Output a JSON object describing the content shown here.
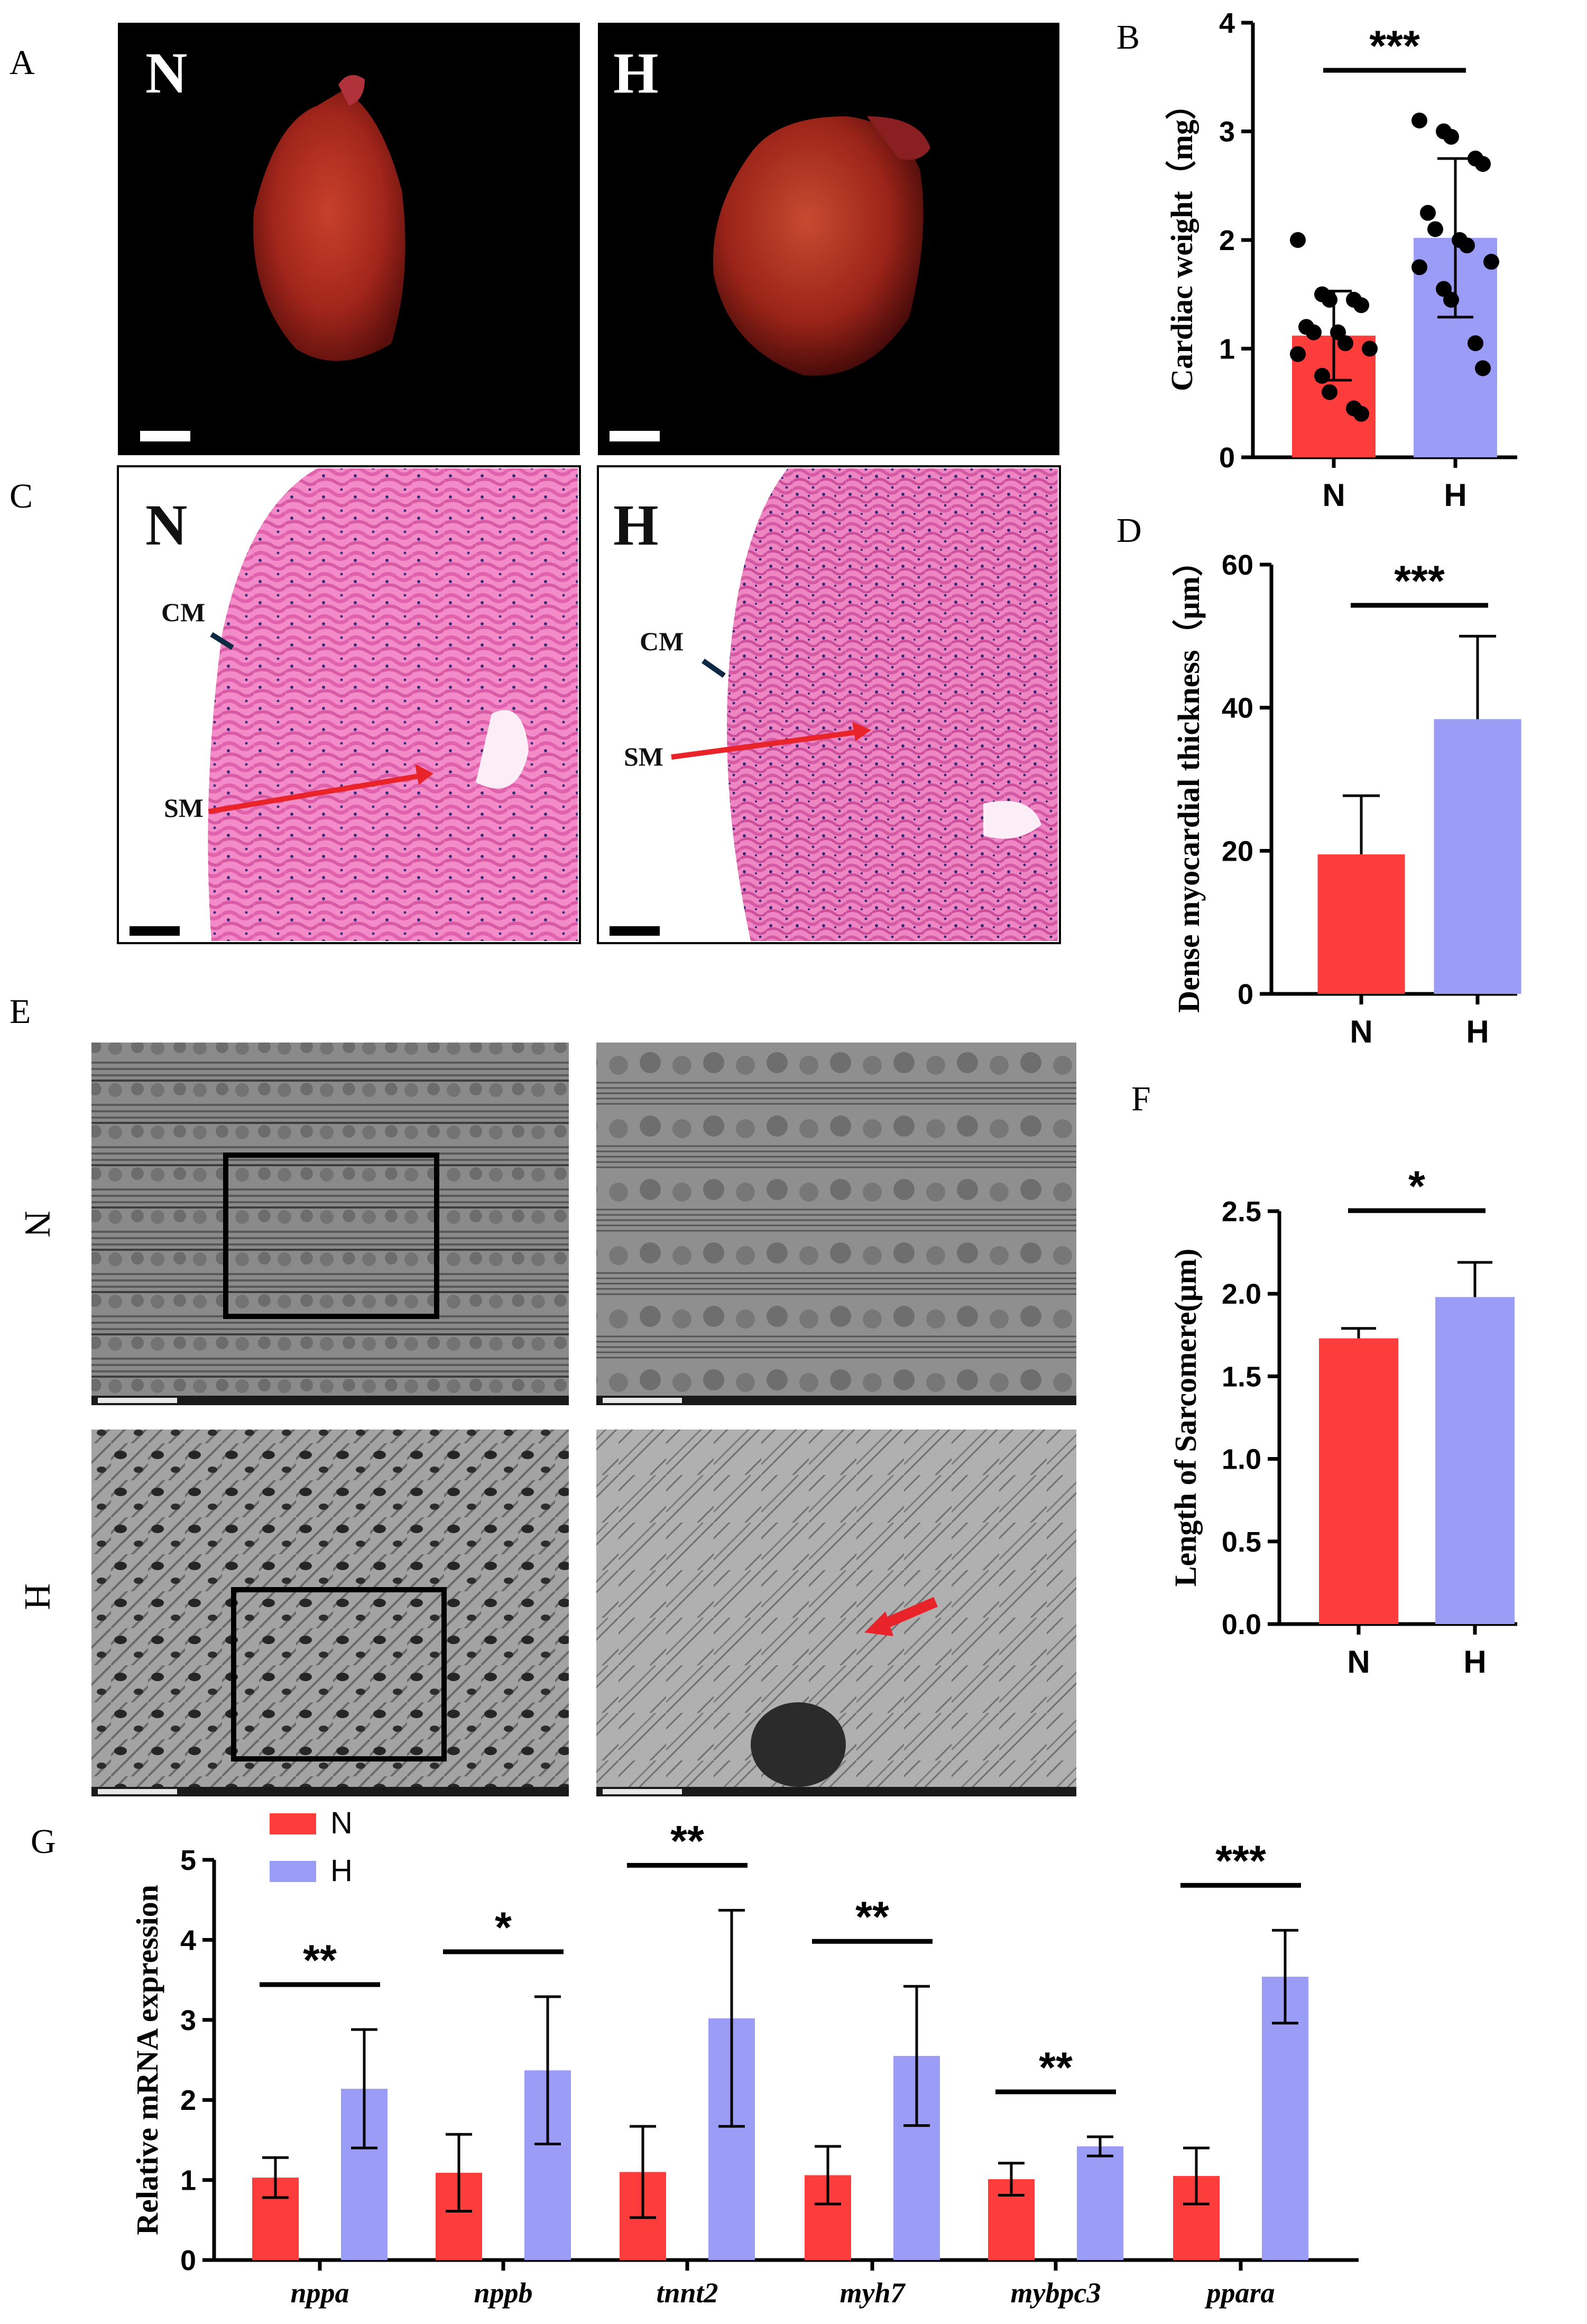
{
  "colors": {
    "N": "#fd3c3c",
    "H": "#9a9cf5",
    "axis": "#000000"
  },
  "panels": {
    "A": {
      "letter": "A",
      "left": "N",
      "right": "H"
    },
    "B": {
      "letter": "B"
    },
    "C": {
      "letter": "C",
      "left": "N",
      "right": "H",
      "cm": "CM",
      "sm": "SM"
    },
    "D": {
      "letter": "D"
    },
    "E": {
      "letter": "E",
      "row1": "N",
      "row2": "H"
    },
    "F": {
      "letter": "F"
    },
    "G": {
      "letter": "G"
    }
  },
  "chart_data": [
    {
      "id": "B",
      "type": "bar",
      "categories": [
        "N",
        "H"
      ],
      "values": [
        1.12,
        2.02
      ],
      "errors": [
        0.41,
        0.73
      ],
      "points": [
        [
          2.0,
          1.5,
          1.45,
          1.45,
          1.4,
          1.2,
          1.15,
          1.15,
          1.05,
          1.0,
          0.95,
          0.75,
          0.6,
          0.45,
          0.4
        ],
        [
          3.1,
          3.0,
          2.95,
          2.75,
          2.7,
          2.25,
          2.1,
          2.0,
          1.95,
          1.8,
          1.75,
          1.55,
          1.45,
          1.05,
          0.82
        ]
      ],
      "ylabel": "Cardiac weight（mg）",
      "ylim": [
        0,
        4
      ],
      "yticks": [
        0,
        1,
        2,
        3,
        4
      ],
      "significance": "***"
    },
    {
      "id": "D",
      "type": "bar",
      "categories": [
        "N",
        "H"
      ],
      "values": [
        19.5,
        38.4
      ],
      "errors": [
        8.2,
        11.6
      ],
      "ylabel": "Dense myocardial thickness（μm）",
      "ylim": [
        0,
        60
      ],
      "yticks": [
        0,
        20,
        40,
        60
      ],
      "significance": "***"
    },
    {
      "id": "F",
      "type": "bar",
      "categories": [
        "N",
        "H"
      ],
      "values": [
        1.73,
        1.98
      ],
      "errors": [
        0.06,
        0.21
      ],
      "ylabel": "Length of Sarcomere(μm)",
      "ylim": [
        0,
        2.5
      ],
      "yticks": [
        "0.0",
        "0.5",
        "1.0",
        "1.5",
        "2.0",
        "2.5"
      ],
      "significance": "*"
    },
    {
      "id": "G",
      "type": "bar",
      "categories": [
        "nppa",
        "nppb",
        "tnnt2",
        "myh7",
        "mybpc3",
        "ppara"
      ],
      "series": [
        {
          "name": "N",
          "values": [
            1.03,
            1.09,
            1.1,
            1.06,
            1.01,
            1.05
          ],
          "errors": [
            0.25,
            0.48,
            0.57,
            0.36,
            0.2,
            0.35
          ]
        },
        {
          "name": "H",
          "values": [
            2.14,
            2.37,
            3.02,
            2.55,
            1.42,
            3.54
          ],
          "errors": [
            0.74,
            0.92,
            1.35,
            0.87,
            0.12,
            0.58
          ]
        }
      ],
      "significance": [
        "**",
        "*",
        "**",
        "**",
        "**",
        "***"
      ],
      "ylabel": "Relative mRNA expression",
      "ylim": [
        0,
        5
      ],
      "yticks": [
        0,
        1,
        2,
        3,
        4,
        5
      ]
    }
  ]
}
